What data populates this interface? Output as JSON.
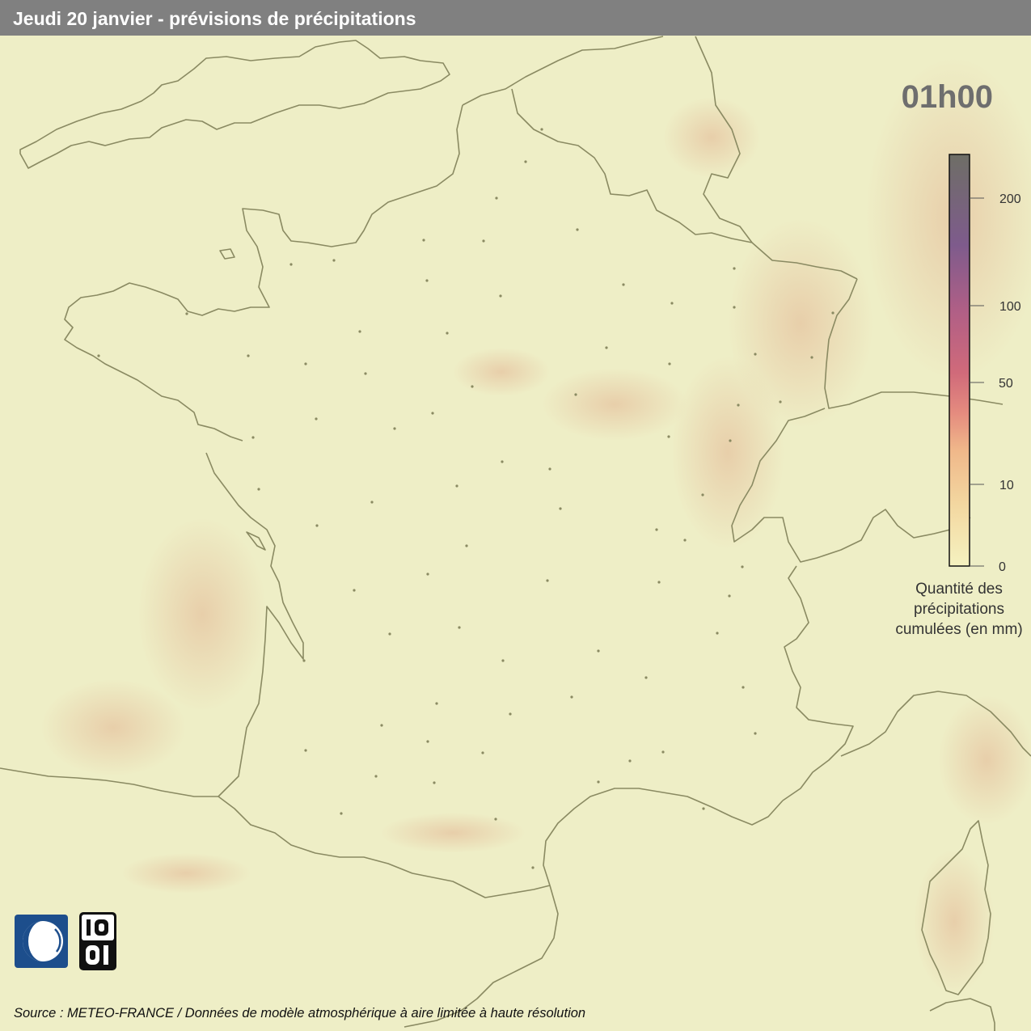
{
  "header": {
    "title": "Jeudi 20 janvier - prévisions de précipitations"
  },
  "time_label": "01h00",
  "legend": {
    "ticks": [
      "0",
      "10",
      "50",
      "100",
      "200"
    ],
    "title_lines": [
      "Quantité des",
      "précipitations",
      "cumulées (en mm)"
    ],
    "colors": [
      "#f5f2c0",
      "#f3d7a0",
      "#f0b88a",
      "#e58c7f",
      "#d06a7a",
      "#b05f86",
      "#7e5b8c",
      "#6e6e66"
    ]
  },
  "source": "Source : METEO-FRANCE / Données de modèle atmosphérique à aire limitée à haute résolution",
  "logos": {
    "left": "meteo-france-logo",
    "right": "open-data-logo"
  }
}
